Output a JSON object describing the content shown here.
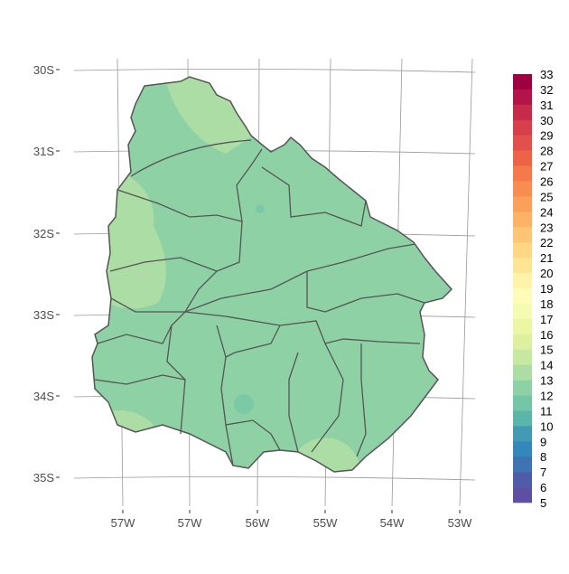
{
  "map": {
    "y_axis_labels": [
      "30S",
      "31S",
      "32S",
      "33S",
      "34S",
      "35S"
    ],
    "x_axis_labels": [
      "57W",
      "57W",
      "56W",
      "55W",
      "54W",
      "53W"
    ],
    "fill_colors": {
      "base": "#8ed1a5",
      "light": "#abdda4",
      "darker_spot": "#6fc4a5"
    },
    "border_color": "#555555",
    "graticule_color": "#999999"
  },
  "legend": {
    "ticks": [
      33,
      32,
      31,
      30,
      29,
      28,
      27,
      26,
      25,
      24,
      23,
      22,
      21,
      20,
      19,
      18,
      17,
      16,
      15,
      14,
      13,
      12,
      11,
      10,
      9,
      8,
      7,
      6,
      5
    ],
    "colors": [
      "#9e0142",
      "#b3144a",
      "#c72a4b",
      "#d7404b",
      "#e1504a",
      "#ec6445",
      "#f47a4b",
      "#f88d52",
      "#fba05a",
      "#fdb265",
      "#fdc574",
      "#fed684",
      "#fee593",
      "#fff3a9",
      "#fffbb8",
      "#f6fbb2",
      "#ebf7a3",
      "#dcf0a0",
      "#c7e8a0",
      "#abdda4",
      "#8ed1a5",
      "#73c6a6",
      "#5bb5a9",
      "#449ab3",
      "#3487bb",
      "#3e74b3",
      "#4f5ca9",
      "#5e4fa2"
    ]
  }
}
